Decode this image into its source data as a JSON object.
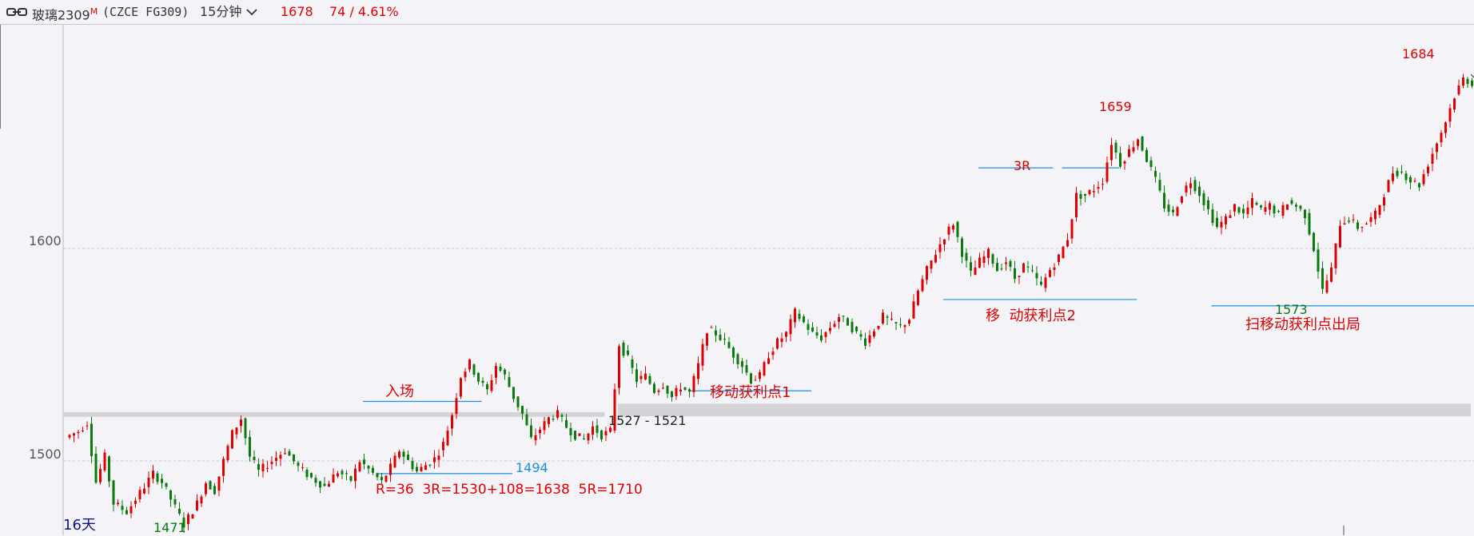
{
  "header": {
    "symbol": "玻璃2309",
    "marker": "M",
    "code": "(CZCE FG309)",
    "period": "15分钟",
    "last_price": "1678",
    "change": "74 / 4.61%",
    "icons": {
      "link": "link-icon",
      "dropdown": "chevron-down-icon"
    }
  },
  "chart_data": {
    "type": "candlestick",
    "y_axis": {
      "min": 1465,
      "max": 1705,
      "ticks": [
        "1500",
        "1600"
      ],
      "gridlines": [
        1500,
        1600
      ]
    },
    "colors": {
      "up": "#e00000",
      "down": "#0a7a0a",
      "grid": "#c7c7cf",
      "zone": "#d3d3d8",
      "level": "#1e8fe0"
    },
    "anchors": [
      [
        0,
        1511
      ],
      [
        3,
        1514
      ],
      [
        5,
        1518
      ],
      [
        7,
        1490
      ],
      [
        9,
        1502
      ],
      [
        11,
        1480
      ],
      [
        14,
        1476
      ],
      [
        17,
        1485
      ],
      [
        20,
        1494
      ],
      [
        22,
        1490
      ],
      [
        25,
        1478
      ],
      [
        27,
        1470
      ],
      [
        30,
        1480
      ],
      [
        32,
        1490
      ],
      [
        34,
        1486
      ],
      [
        36,
        1500
      ],
      [
        38,
        1513
      ],
      [
        40,
        1520
      ],
      [
        42,
        1502
      ],
      [
        44,
        1495
      ],
      [
        47,
        1500
      ],
      [
        50,
        1505
      ],
      [
        53,
        1497
      ],
      [
        56,
        1492
      ],
      [
        59,
        1488
      ],
      [
        62,
        1495
      ],
      [
        65,
        1491
      ],
      [
        67,
        1500
      ],
      [
        70,
        1494
      ],
      [
        72,
        1490
      ],
      [
        74,
        1497
      ],
      [
        76,
        1505
      ],
      [
        78,
        1500
      ],
      [
        80,
        1495
      ],
      [
        82,
        1498
      ],
      [
        84,
        1501
      ],
      [
        86,
        1508
      ],
      [
        88,
        1522
      ],
      [
        90,
        1540
      ],
      [
        92,
        1546
      ],
      [
        94,
        1538
      ],
      [
        96,
        1533
      ],
      [
        98,
        1545
      ],
      [
        100,
        1540
      ],
      [
        102,
        1530
      ],
      [
        104,
        1522
      ],
      [
        106,
        1510
      ],
      [
        108,
        1515
      ],
      [
        110,
        1520
      ],
      [
        112,
        1522
      ],
      [
        114,
        1516
      ],
      [
        116,
        1512
      ],
      [
        118,
        1510
      ],
      [
        120,
        1516
      ],
      [
        122,
        1512
      ],
      [
        124,
        1514
      ],
      [
        126,
        1555
      ],
      [
        128,
        1548
      ],
      [
        130,
        1538
      ],
      [
        132,
        1540
      ],
      [
        134,
        1533
      ],
      [
        136,
        1536
      ],
      [
        138,
        1530
      ],
      [
        140,
        1535
      ],
      [
        142,
        1532
      ],
      [
        144,
        1545
      ],
      [
        146,
        1562
      ],
      [
        148,
        1560
      ],
      [
        150,
        1556
      ],
      [
        152,
        1550
      ],
      [
        154,
        1545
      ],
      [
        156,
        1538
      ],
      [
        158,
        1540
      ],
      [
        160,
        1550
      ],
      [
        162,
        1556
      ],
      [
        164,
        1560
      ],
      [
        166,
        1570
      ],
      [
        168,
        1565
      ],
      [
        170,
        1560
      ],
      [
        172,
        1558
      ],
      [
        174,
        1563
      ],
      [
        176,
        1568
      ],
      [
        178,
        1565
      ],
      [
        180,
        1560
      ],
      [
        182,
        1556
      ],
      [
        184,
        1562
      ],
      [
        186,
        1568
      ],
      [
        188,
        1565
      ],
      [
        190,
        1563
      ],
      [
        192,
        1567
      ],
      [
        194,
        1580
      ],
      [
        196,
        1590
      ],
      [
        198,
        1598
      ],
      [
        200,
        1606
      ],
      [
        202,
        1612
      ],
      [
        204,
        1598
      ],
      [
        206,
        1588
      ],
      [
        208,
        1594
      ],
      [
        210,
        1598
      ],
      [
        212,
        1590
      ],
      [
        214,
        1594
      ],
      [
        216,
        1586
      ],
      [
        218,
        1592
      ],
      [
        220,
        1588
      ],
      [
        222,
        1582
      ],
      [
        224,
        1590
      ],
      [
        226,
        1596
      ],
      [
        228,
        1605
      ],
      [
        230,
        1625
      ],
      [
        232,
        1625
      ],
      [
        234,
        1628
      ],
      [
        236,
        1632
      ],
      [
        238,
        1650
      ],
      [
        240,
        1640
      ],
      [
        242,
        1646
      ],
      [
        244,
        1652
      ],
      [
        246,
        1642
      ],
      [
        248,
        1632
      ],
      [
        250,
        1620
      ],
      [
        252,
        1616
      ],
      [
        254,
        1626
      ],
      [
        256,
        1632
      ],
      [
        258,
        1626
      ],
      [
        260,
        1618
      ],
      [
        262,
        1610
      ],
      [
        264,
        1614
      ],
      [
        266,
        1620
      ],
      [
        268,
        1616
      ],
      [
        270,
        1622
      ],
      [
        272,
        1618
      ],
      [
        274,
        1620
      ],
      [
        276,
        1616
      ],
      [
        278,
        1622
      ],
      [
        280,
        1620
      ],
      [
        282,
        1616
      ],
      [
        284,
        1600
      ],
      [
        286,
        1580
      ],
      [
        288,
        1590
      ],
      [
        290,
        1612
      ],
      [
        292,
        1614
      ],
      [
        294,
        1610
      ],
      [
        296,
        1612
      ],
      [
        298,
        1616
      ],
      [
        300,
        1626
      ],
      [
        302,
        1636
      ],
      [
        304,
        1636
      ],
      [
        306,
        1632
      ],
      [
        308,
        1630
      ],
      [
        310,
        1640
      ],
      [
        312,
        1650
      ],
      [
        314,
        1660
      ],
      [
        316,
        1672
      ],
      [
        318,
        1680
      ],
      [
        320,
        1678
      ]
    ],
    "zones": [
      {
        "from": 1527,
        "to": 1521,
        "start": 126,
        "end": 320,
        "label": "1527 - 1521"
      },
      {
        "from": 1523,
        "to": 1521,
        "start": 0,
        "end": 123
      }
    ],
    "levels": [
      {
        "price": 1494,
        "start": 71,
        "end": 102,
        "label": "1494"
      },
      {
        "price": 1528,
        "start": 68,
        "end": 95
      },
      {
        "price": 1533,
        "start": 142,
        "end": 170
      },
      {
        "price": 1576,
        "start": 200,
        "end": 244
      },
      {
        "price": 1573,
        "start": 261,
        "end": 324
      },
      {
        "price": 1638,
        "start": 208,
        "end": 225
      },
      {
        "price": 1638,
        "start": 227,
        "end": 240
      }
    ],
    "peak_labels": [
      {
        "text": "1471",
        "value": 1471,
        "color": "green"
      },
      {
        "text": "1659",
        "value": 1659,
        "color": "red"
      },
      {
        "text": "1573",
        "value": 1573,
        "color": "green"
      },
      {
        "text": "1684",
        "value": 1684,
        "color": "red"
      }
    ],
    "annotations": {
      "entry": "入场",
      "trail1": "移动获利点1",
      "trail2": "移  动获利点2",
      "three_r": "3R",
      "exit": "扫移动获利点出局",
      "risk_note": "R=36  3R=1530+108=1638  5R=1710"
    },
    "footer_label": "16天"
  }
}
